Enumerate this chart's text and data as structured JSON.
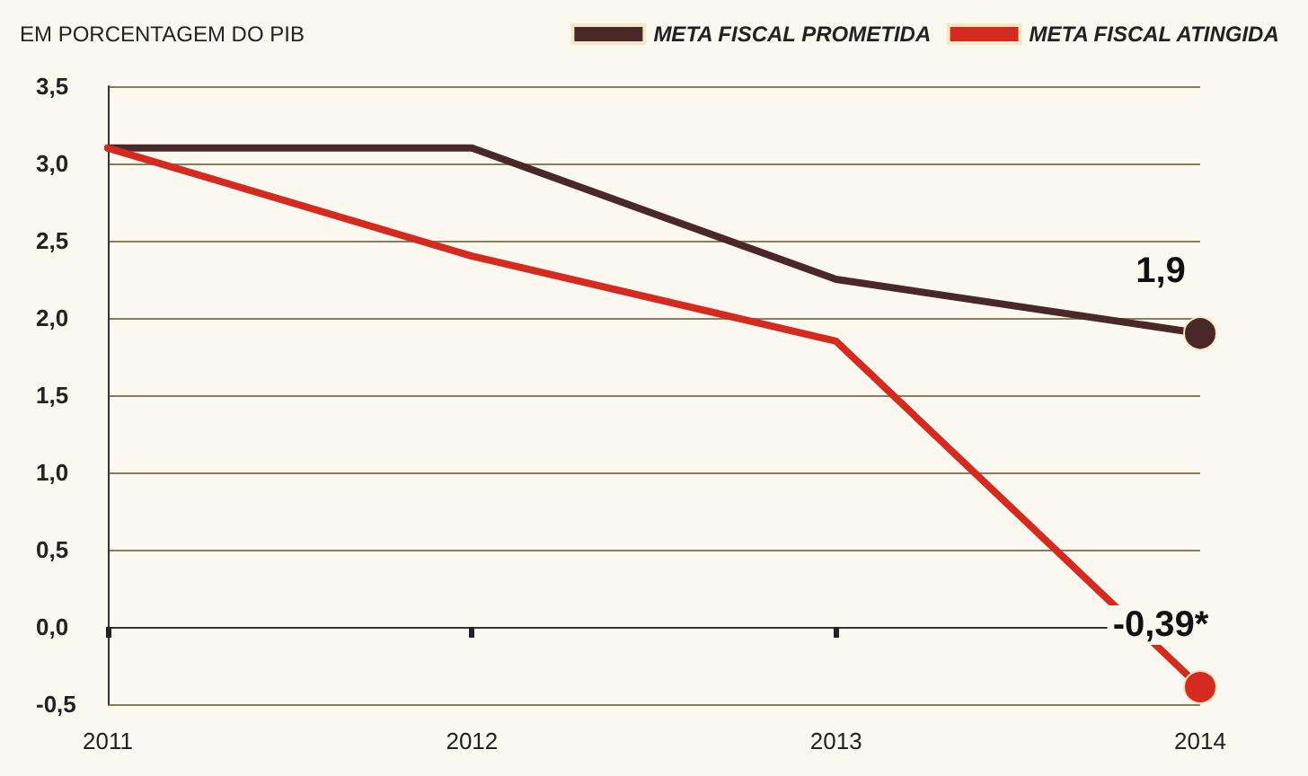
{
  "chart_data": {
    "type": "line",
    "title": "EM PORCENTAGEM DO PIB",
    "categories": [
      "2011",
      "2012",
      "2013",
      "2014"
    ],
    "series": [
      {
        "name": "META FISCAL PROMETIDA",
        "color": "#4a2828",
        "values": [
          3.1,
          3.1,
          2.25,
          1.9
        ],
        "value_labels": [
          null,
          null,
          null,
          "1,9"
        ]
      },
      {
        "name": "META FISCAL ATINGIDA",
        "color": "#d42a20",
        "values": [
          3.1,
          2.4,
          1.85,
          -0.39
        ],
        "value_labels": [
          null,
          null,
          null,
          "-0,39*"
        ]
      }
    ],
    "ylim": [
      -0.5,
      3.5
    ],
    "yticks": [
      {
        "value": -0.5,
        "label": "-0,5"
      },
      {
        "value": 0,
        "label": "0,0"
      },
      {
        "value": 0.5,
        "label": "0,5"
      },
      {
        "value": 1,
        "label": "1,0"
      },
      {
        "value": 1.5,
        "label": "1,5"
      },
      {
        "value": 2,
        "label": "2,0"
      },
      {
        "value": 2.5,
        "label": "2,5"
      },
      {
        "value": 3,
        "label": "3,0"
      },
      {
        "value": 3.5,
        "label": "3,5"
      }
    ],
    "grid": "y",
    "legend": "top right",
    "line_style": "solid"
  }
}
